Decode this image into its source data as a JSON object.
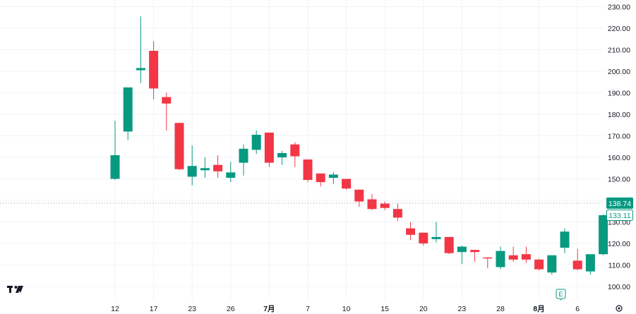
{
  "colors": {
    "up": "#089981",
    "down": "#f23645",
    "grid": "#f0f3fa",
    "text": "#131722",
    "crosshair": "#9598a1"
  },
  "logo_icon": "tradingview-logo-icon",
  "earnings_marker": {
    "icon": "earnings-event-icon",
    "label": "E"
  },
  "settings_icon": "gear-icon",
  "chart_data": {
    "type": "candlestick",
    "ylim": [
      95,
      233
    ],
    "y_ticks": [
      "100.00",
      "110.00",
      "120.00",
      "130.00",
      "140.00",
      "150.00",
      "160.00",
      "170.00",
      "180.00",
      "190.00",
      "200.00",
      "210.00",
      "220.00",
      "230.00"
    ],
    "x_ticks": [
      {
        "label": "12",
        "index": 0
      },
      {
        "label": "17",
        "index": 3
      },
      {
        "label": "23",
        "index": 6
      },
      {
        "label": "26",
        "index": 9
      },
      {
        "label": "7月",
        "index": 12,
        "bold": true
      },
      {
        "label": "7",
        "index": 15
      },
      {
        "label": "10",
        "index": 18
      },
      {
        "label": "15",
        "index": 21
      },
      {
        "label": "20",
        "index": 24
      },
      {
        "label": "23",
        "index": 27
      },
      {
        "label": "28",
        "index": 30
      },
      {
        "label": "8月",
        "index": 33,
        "bold": true
      },
      {
        "label": "6",
        "index": 36
      }
    ],
    "crosshair_price": "138.74",
    "last_price": "133.11",
    "candles": [
      {
        "o": 150.0,
        "h": 177.0,
        "l": 149.5,
        "c": 161.0
      },
      {
        "o": 172.0,
        "h": 192.5,
        "l": 168.0,
        "c": 192.5
      },
      {
        "o": 200.5,
        "h": 225.5,
        "l": 194.5,
        "c": 201.5
      },
      {
        "o": 209.5,
        "h": 214.0,
        "l": 187.0,
        "c": 192.0
      },
      {
        "o": 188.0,
        "h": 190.0,
        "l": 172.5,
        "c": 185.0
      },
      {
        "o": 176.0,
        "h": 176.0,
        "l": 154.0,
        "c": 154.5
      },
      {
        "o": 151.0,
        "h": 165.5,
        "l": 147.0,
        "c": 156.0
      },
      {
        "o": 154.0,
        "h": 160.0,
        "l": 150.5,
        "c": 155.0
      },
      {
        "o": 156.5,
        "h": 161.0,
        "l": 150.5,
        "c": 153.5
      },
      {
        "o": 150.5,
        "h": 158.0,
        "l": 148.5,
        "c": 153.0
      },
      {
        "o": 157.5,
        "h": 166.0,
        "l": 151.5,
        "c": 164.0
      },
      {
        "o": 163.5,
        "h": 172.5,
        "l": 161.5,
        "c": 170.5
      },
      {
        "o": 171.5,
        "h": 171.5,
        "l": 155.5,
        "c": 157.5
      },
      {
        "o": 160.0,
        "h": 163.0,
        "l": 156.5,
        "c": 162.0
      },
      {
        "o": 166.0,
        "h": 167.0,
        "l": 155.5,
        "c": 160.5
      },
      {
        "o": 159.0,
        "h": 159.0,
        "l": 148.5,
        "c": 149.5
      },
      {
        "o": 152.5,
        "h": 152.5,
        "l": 146.5,
        "c": 148.5
      },
      {
        "o": 150.5,
        "h": 153.0,
        "l": 147.5,
        "c": 152.0
      },
      {
        "o": 150.0,
        "h": 150.0,
        "l": 145.0,
        "c": 145.5
      },
      {
        "o": 145.0,
        "h": 145.0,
        "l": 137.0,
        "c": 139.5
      },
      {
        "o": 140.5,
        "h": 143.0,
        "l": 135.5,
        "c": 136.0
      },
      {
        "o": 138.5,
        "h": 139.5,
        "l": 135.5,
        "c": 136.5
      },
      {
        "o": 136.0,
        "h": 138.5,
        "l": 130.5,
        "c": 132.0
      },
      {
        "o": 127.0,
        "h": 130.0,
        "l": 121.5,
        "c": 124.0
      },
      {
        "o": 125.0,
        "h": 125.0,
        "l": 119.0,
        "c": 120.0
      },
      {
        "o": 122.0,
        "h": 130.0,
        "l": 120.5,
        "c": 123.0
      },
      {
        "o": 123.0,
        "h": 123.0,
        "l": 115.0,
        "c": 115.5
      },
      {
        "o": 116.0,
        "h": 119.0,
        "l": 110.5,
        "c": 118.5
      },
      {
        "o": 117.0,
        "h": 117.0,
        "l": 111.5,
        "c": 116.0
      },
      {
        "o": 113.5,
        "h": 113.5,
        "l": 108.5,
        "c": 113.0
      },
      {
        "o": 109.0,
        "h": 118.5,
        "l": 108.0,
        "c": 116.5
      },
      {
        "o": 114.5,
        "h": 118.5,
        "l": 111.5,
        "c": 112.5
      },
      {
        "o": 115.0,
        "h": 118.5,
        "l": 111.0,
        "c": 112.5
      },
      {
        "o": 112.5,
        "h": 113.0,
        "l": 107.5,
        "c": 108.0
      },
      {
        "o": 106.5,
        "h": 114.5,
        "l": 105.5,
        "c": 114.5
      },
      {
        "o": 118.0,
        "h": 127.0,
        "l": 115.5,
        "c": 125.5
      },
      {
        "o": 112.0,
        "h": 117.5,
        "l": 107.5,
        "c": 108.0
      },
      {
        "o": 107.0,
        "h": 115.0,
        "l": 105.5,
        "c": 115.0
      },
      {
        "o": 115.0,
        "h": 133.5,
        "l": 114.5,
        "c": 133.11
      }
    ]
  }
}
